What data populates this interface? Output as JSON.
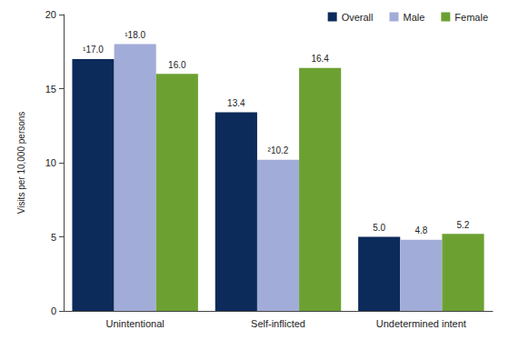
{
  "chart_data": {
    "type": "bar",
    "y_label": "Visits per 10,000 persons",
    "categories": [
      "Unintentional",
      "Self-inflicted",
      "Undetermined intent"
    ],
    "series": [
      {
        "name": "Overall",
        "color": "#0c2a5a",
        "values": [
          17.0,
          13.4,
          5.0
        ],
        "value_labels": [
          "¹17.0",
          "13.4",
          "5.0"
        ]
      },
      {
        "name": "Male",
        "color": "#a2acd8",
        "values": [
          18.0,
          10.2,
          4.8
        ],
        "value_labels": [
          "¹18.0",
          "²10.2",
          "4.8"
        ]
      },
      {
        "name": "Female",
        "color": "#6ca132",
        "values": [
          16.0,
          16.4,
          5.2
        ],
        "value_labels": [
          "16.0",
          "16.4",
          "5.2"
        ]
      }
    ],
    "ylim": [
      0,
      20
    ],
    "yticks": [
      0,
      5,
      10,
      15,
      20
    ],
    "grid": false,
    "legend": "top-right",
    "data_labels": true
  }
}
